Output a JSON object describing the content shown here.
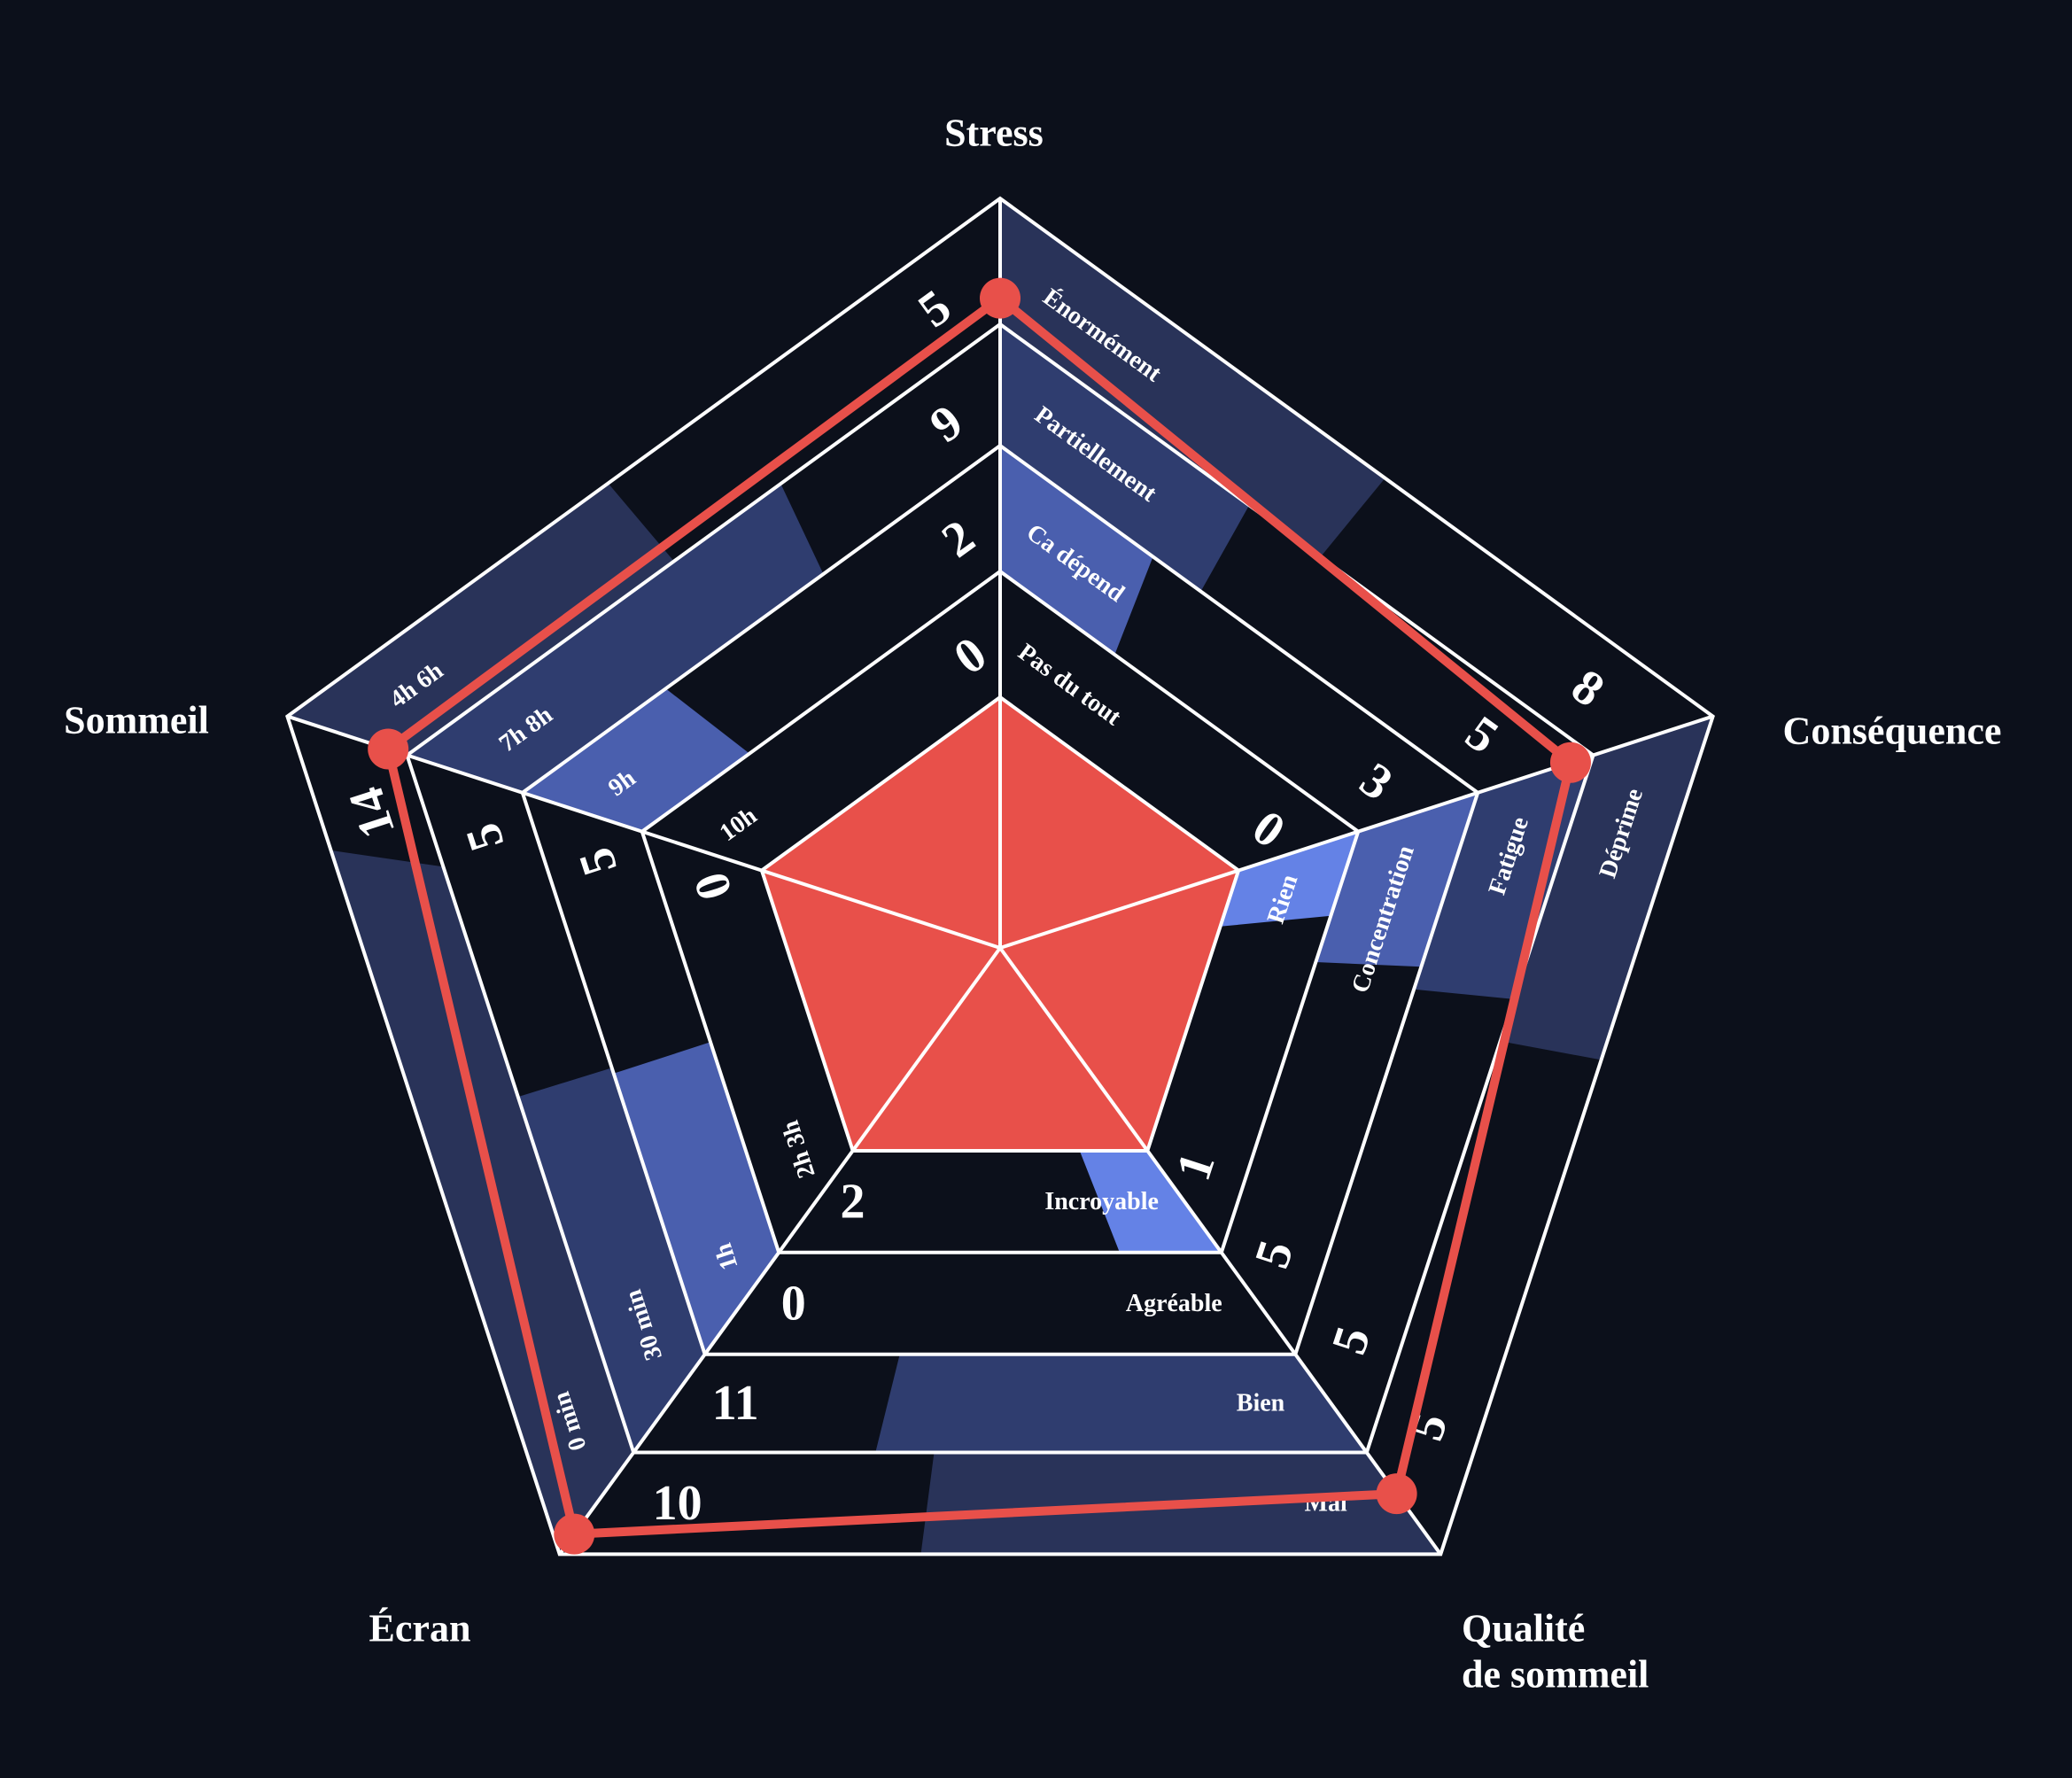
{
  "chart_data": {
    "type": "radar",
    "colors": {
      "background": "#0c101b",
      "center": "#e8504a",
      "line": "#e8504a",
      "grid": "#ffffff",
      "band_fills": [
        "#293359",
        "#2f3d6f",
        "#4a5fae",
        "#6482e6"
      ]
    },
    "axes": [
      {
        "title": [
          "Stress"
        ],
        "rows": [
          {
            "label": "Énormément",
            "count": 8,
            "fill": 0.54
          },
          {
            "label": "Partiellement",
            "count": 5,
            "fill": 0.42
          },
          {
            "label": "Ca dépend",
            "count": 3,
            "fill": 0.32
          },
          {
            "label": "Pas du tout",
            "count": 0,
            "fill": 0
          }
        ]
      },
      {
        "title": [
          "Conséquence"
        ],
        "rows": [
          {
            "label": "Déprime",
            "count": 5,
            "fill": 0.41
          },
          {
            "label": "Fatigue",
            "count": 5,
            "fill": 0.35
          },
          {
            "label": "Concentration",
            "count": 5,
            "fill": 0.31
          },
          {
            "label": "Rien",
            "count": 1,
            "fill": 0.2
          }
        ]
      },
      {
        "title": [
          "Qualité",
          "de sommeil"
        ],
        "rows": [
          {
            "label": "Mal",
            "count": 10,
            "fill": 0.59
          },
          {
            "label": "Bien",
            "count": 11,
            "fill": 0.67
          },
          {
            "label": "Agréable",
            "count": 0,
            "fill": 0
          },
          {
            "label": "Incroyable",
            "count": 2,
            "fill": 0.23
          }
        ]
      },
      {
        "title": [
          "Écran"
        ],
        "rows": [
          {
            "label": "0 min",
            "count": 14,
            "fill": 0.84
          },
          {
            "label": "30 min",
            "count": 5,
            "fill": 0.51
          },
          {
            "label": "1h",
            "count": 5,
            "fill": 0.5
          },
          {
            "label": "2h 3h",
            "count": 0,
            "fill": 0
          }
        ]
      },
      {
        "title": [
          "Sommeil"
        ],
        "rows": [
          {
            "label": "4h 6h",
            "count": 5,
            "fill": 0.45
          },
          {
            "label": "7h 8h",
            "count": 9,
            "fill": 0.63
          },
          {
            "label": "9h",
            "count": 2,
            "fill": 0.3
          },
          {
            "label": "10h",
            "count": 0,
            "fill": 0
          }
        ]
      }
    ],
    "series_levels": [
      3.2,
      2.8,
      3.4,
      3.8,
      3.15
    ]
  }
}
